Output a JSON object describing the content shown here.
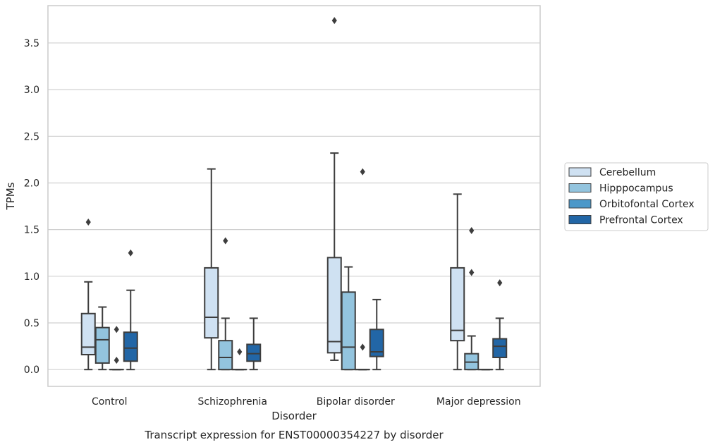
{
  "chart_data": {
    "type": "box",
    "title": "",
    "caption": "Transcript expression for ENST00000354227 by disorder",
    "xlabel": "Disorder",
    "ylabel": "TPMs",
    "ylim": [
      -0.18,
      3.9
    ],
    "yticks": [
      "0.0",
      "0.5",
      "1.0",
      "1.5",
      "2.0",
      "2.5",
      "3.0",
      "3.5"
    ],
    "grid": "horizontal",
    "legend_position": "right",
    "categories": [
      "Control",
      "Schizophrenia",
      "Bipolar disorder",
      "Major depression"
    ],
    "series": [
      {
        "name": "Cerebellum",
        "color": "#cfe1f2",
        "boxes": [
          {
            "whisker_low": 0.0,
            "q1": 0.16,
            "median": 0.24,
            "q3": 0.6,
            "whisker_high": 0.94,
            "outliers": [
              1.58
            ]
          },
          {
            "whisker_low": 0.0,
            "q1": 0.34,
            "median": 0.56,
            "q3": 1.09,
            "whisker_high": 2.15,
            "outliers": []
          },
          {
            "whisker_low": 0.1,
            "q1": 0.18,
            "median": 0.3,
            "q3": 1.2,
            "whisker_high": 2.32,
            "outliers": [
              3.74
            ]
          },
          {
            "whisker_low": 0.0,
            "q1": 0.31,
            "median": 0.42,
            "q3": 1.09,
            "whisker_high": 1.88,
            "outliers": []
          }
        ]
      },
      {
        "name": "Hipppocampus",
        "color": "#93c4de",
        "boxes": [
          {
            "whisker_low": 0.0,
            "q1": 0.07,
            "median": 0.32,
            "q3": 0.45,
            "whisker_high": 0.67,
            "outliers": []
          },
          {
            "whisker_low": 0.0,
            "q1": 0.0,
            "median": 0.13,
            "q3": 0.31,
            "whisker_high": 0.55,
            "outliers": [
              1.38
            ]
          },
          {
            "whisker_low": 0.0,
            "q1": 0.0,
            "median": 0.24,
            "q3": 0.83,
            "whisker_high": 1.1,
            "outliers": []
          },
          {
            "whisker_low": 0.0,
            "q1": 0.0,
            "median": 0.08,
            "q3": 0.17,
            "whisker_high": 0.36,
            "outliers": [
              1.04,
              1.49
            ]
          }
        ]
      },
      {
        "name": "Orbitofontal Cortex",
        "color": "#4b98c9",
        "boxes": [
          {
            "whisker_low": 0.0,
            "q1": 0.0,
            "median": 0.0,
            "q3": 0.0,
            "whisker_high": 0.0,
            "outliers": [
              0.1,
              0.43
            ]
          },
          {
            "whisker_low": 0.0,
            "q1": 0.0,
            "median": 0.0,
            "q3": 0.0,
            "whisker_high": 0.0,
            "outliers": [
              0.19
            ]
          },
          {
            "whisker_low": 0.0,
            "q1": 0.0,
            "median": 0.0,
            "q3": 0.0,
            "whisker_high": 0.0,
            "outliers": [
              0.24,
              2.12
            ]
          },
          {
            "whisker_low": 0.0,
            "q1": 0.0,
            "median": 0.0,
            "q3": 0.0,
            "whisker_high": 0.0,
            "outliers": []
          }
        ]
      },
      {
        "name": "Prefrontal Cortex",
        "color": "#2266a6",
        "boxes": [
          {
            "whisker_low": 0.0,
            "q1": 0.09,
            "median": 0.23,
            "q3": 0.4,
            "whisker_high": 0.85,
            "outliers": [
              1.25
            ]
          },
          {
            "whisker_low": 0.0,
            "q1": 0.09,
            "median": 0.17,
            "q3": 0.27,
            "whisker_high": 0.55,
            "outliers": []
          },
          {
            "whisker_low": 0.0,
            "q1": 0.14,
            "median": 0.19,
            "q3": 0.43,
            "whisker_high": 0.75,
            "outliers": []
          },
          {
            "whisker_low": 0.0,
            "q1": 0.13,
            "median": 0.25,
            "q3": 0.33,
            "whisker_high": 0.55,
            "outliers": [
              0.93
            ]
          }
        ]
      }
    ]
  }
}
